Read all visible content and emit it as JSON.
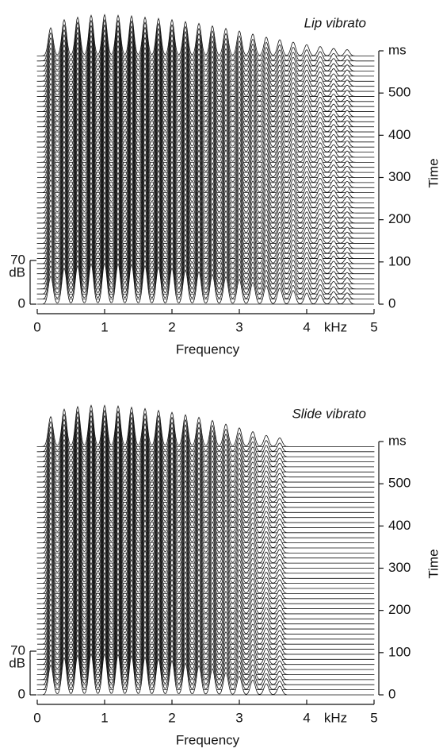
{
  "chart_data": [
    {
      "type": "waterfall",
      "title": "Lip vibrato",
      "x_label": "Frequency",
      "x_unit": "kHz",
      "y_label": "Time",
      "y_unit": "ms",
      "z_unit": "dB",
      "xlim": [
        0,
        5
      ],
      "xticks": [
        0,
        1,
        2,
        3,
        4,
        5
      ],
      "ylim": [
        0,
        600
      ],
      "yticks": [
        0,
        100,
        200,
        300,
        400,
        500
      ],
      "zlim": [
        0,
        70
      ],
      "zticks": [
        0,
        70
      ],
      "color": "#111111",
      "x": [
        0.2,
        0.4,
        0.6,
        0.8,
        1.0,
        1.2,
        1.4,
        1.6,
        1.8,
        2.0,
        2.2,
        2.4,
        2.6,
        2.8,
        3.0,
        3.2,
        3.4,
        3.6,
        3.8,
        4.0,
        4.2,
        4.4,
        4.6
      ],
      "values": [
        45,
        58,
        62,
        65,
        66,
        65,
        64,
        62,
        60,
        58,
        55,
        52,
        48,
        44,
        40,
        35,
        30,
        26,
        22,
        18,
        15,
        12,
        10
      ]
    },
    {
      "type": "waterfall",
      "title": "Slide vibrato",
      "x_label": "Frequency",
      "x_unit": "kHz",
      "y_label": "Time",
      "y_unit": "ms",
      "z_unit": "dB",
      "xlim": [
        0,
        5
      ],
      "xticks": [
        0,
        1,
        2,
        3,
        4,
        5
      ],
      "ylim": [
        0,
        600
      ],
      "yticks": [
        0,
        100,
        200,
        300,
        400,
        500
      ],
      "zlim": [
        0,
        70
      ],
      "zticks": [
        0,
        70
      ],
      "color": "#111111",
      "x": [
        0.2,
        0.4,
        0.6,
        0.8,
        1.0,
        1.2,
        1.4,
        1.6,
        1.8,
        2.0,
        2.2,
        2.4,
        2.6,
        2.8,
        3.0,
        3.2,
        3.4,
        3.6
      ],
      "values": [
        48,
        60,
        64,
        66,
        66,
        65,
        63,
        61,
        58,
        55,
        51,
        47,
        42,
        36,
        30,
        24,
        18,
        14
      ]
    }
  ]
}
